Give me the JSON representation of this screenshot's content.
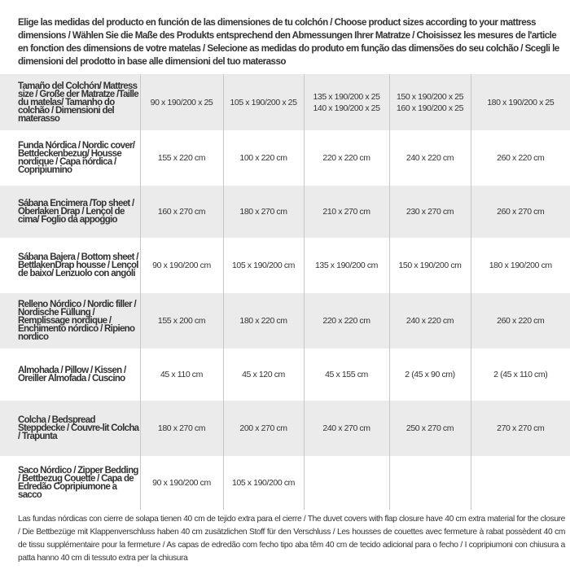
{
  "intro": "Elige las medidas del producto en función de las dimensiones de tu colchón / Choose product sizes according to your mattress dimensions / Wählen Sie die Maße des Produkts entsprechend den Abmessungen Ihrer Matratze / Choisissez les mesures de l'article en fonction des dimensions de votre matelas / Selecione as medidas do produto em função das dimensões do seu colchão / Scegli le dimensioni del prodotto in base alle dimensioni del tuo materasso",
  "header": {
    "label": "Tamaño del Colchón/ Mattress size / Große der Matratze /Taille du matelas/ Tamanho do colchão / Dimensioni del materasso",
    "sizes": [
      [
        "90 x 190/200 x 25"
      ],
      [
        "105 x 190/200 x 25"
      ],
      [
        "135 x 190/200 x 25",
        "140 x 190/200 x 25"
      ],
      [
        "150 x 190/200 x 25",
        "160 x 190/200 x 25"
      ],
      [
        "180 x 190/200 x 25"
      ]
    ]
  },
  "rows": [
    {
      "label": "Funda Nórdica /  Nordic cover/ Bettdeckenbezug/ Housse nordique  / Capa nórdica / Copripiumino",
      "values": [
        "155 x 220 cm",
        "100 x 220 cm",
        "220 x 220 cm",
        "240 x 220 cm",
        "260 x 220 cm"
      ]
    },
    {
      "label": "Sábana Encimera /Top sheet / Oberlaken Drap / Lençol de cima/ Foglio da appoggio",
      "values": [
        "160 x 270 cm",
        "180 x 270 cm",
        "210 x 270 cm",
        "230 x 270 cm",
        "260 x 270 cm"
      ]
    },
    {
      "label": "Sábana Bajera / Bottom sheet / BettlakenDrap housse / Lençol de baixo/ Lenzuolo con angoli",
      "values": [
        "90 x 190/200 cm",
        "105 x 190/200 cm",
        "135 x 190/200 cm",
        "150 x 190/200 cm",
        "180 x 190/200 cm"
      ]
    },
    {
      "label": "Relleno Nórdico / Nordic filler / Nordische Füllung / Remplissage nordique / Enchimento nórdico / Ripieno nordico",
      "values": [
        "155 x 200 cm",
        "180 x 220 cm",
        "220 x 220 cm",
        "240 x 220 cm",
        "260 x 220 cm"
      ]
    },
    {
      "label": "Almohada  / Pillow / Kissen / Oreiller Almofada / Cuscino",
      "values": [
        "45 x 110 cm",
        "45 x 120 cm",
        "45 x 155 cm",
        "2 (45 x 90 cm)",
        "2 (45 x 110 cm)"
      ]
    },
    {
      "label": "Colcha / Bedspread Steppdecke / Couvre-lit Colcha / Trapunta",
      "values": [
        "180 x 270 cm",
        "200 x 270 cm",
        "240 x 270 cm",
        "250 x 270 cm",
        "270 x 270 cm"
      ]
    },
    {
      "label": "Saco Nórdico / Zipper Bedding / Bettbezug Couette  / Capa de Edredão Copripiumone a sacco",
      "values": [
        "90 x 190/200 cm",
        "105 x 190/200 cm",
        "",
        "",
        ""
      ]
    }
  ],
  "footnote": "Las fundas nórdicas con cierre de solapa tienen 40 cm de tejido extra para el cierre  / The duvet covers with flap closure have 40 cm extra material for the closure / Die Bettbezüge mit Klappenverschluss haben 40 cm zusätzlichen Stoff für den Verschluss / Les housses de couettes avec fermeture à rabat possèdent 40 cm de tissu supplémentaire pour la fermeture / As capas de edredão com fecho tipo aba têm 40 cm de tecido adicional para o fecho / I copripiumoni con chiusura a patta hanno 40 cm di tessuto extra per la chiusura"
}
